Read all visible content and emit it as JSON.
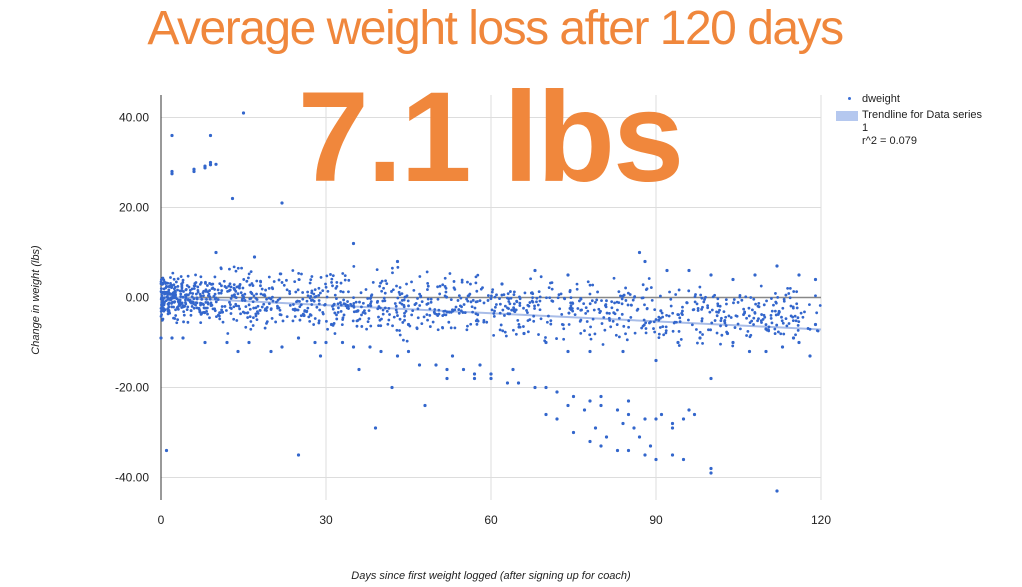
{
  "headline": {
    "title": "Average weight loss after 120 days",
    "highlight": "7.1 lbs"
  },
  "colors": {
    "accent": "#f0873c",
    "points": "#3366cc",
    "trendline": "#a9bde8",
    "grid": "#dddddd",
    "zero_line": "#888888"
  },
  "chart_data": {
    "type": "scatter",
    "title": "Average weight loss after 120 days",
    "xlabel": "Days since first weight logged (after signing up for coach)",
    "ylabel": "Change in weight (lbs)",
    "xlim": [
      0,
      120
    ],
    "ylim": [
      -45,
      45
    ],
    "x_ticks": [
      0,
      30,
      60,
      90,
      120
    ],
    "y_ticks": [
      40,
      20,
      0,
      -20,
      -40
    ],
    "x_tick_labels": [
      "0",
      "30",
      "60",
      "90",
      "120"
    ],
    "y_tick_labels": [
      "40.00",
      "20.00",
      "0.00",
      "-20.00",
      "-40.00"
    ],
    "grid": true,
    "legend_position": "right",
    "series": [
      {
        "name": "dweight",
        "points": [
          [
            2,
            36
          ],
          [
            2,
            28
          ],
          [
            2,
            27.5
          ],
          [
            6,
            28.5
          ],
          [
            6,
            28
          ],
          [
            8,
            28.8
          ],
          [
            8,
            29.2
          ],
          [
            9,
            29.5
          ],
          [
            9,
            30
          ],
          [
            9,
            36
          ],
          [
            10,
            29.6
          ],
          [
            15,
            41
          ],
          [
            13,
            22
          ],
          [
            22,
            21
          ],
          [
            1,
            -34
          ],
          [
            25,
            -35
          ],
          [
            39,
            -29
          ],
          [
            42,
            -20
          ],
          [
            35,
            12
          ],
          [
            17,
            9
          ],
          [
            10,
            10
          ],
          [
            87,
            10
          ],
          [
            43,
            8
          ],
          [
            68,
            6
          ],
          [
            0,
            -9
          ],
          [
            2,
            -9
          ],
          [
            4,
            -9
          ],
          [
            8,
            -10
          ],
          [
            12,
            -10
          ],
          [
            14,
            -12
          ],
          [
            16,
            -10
          ],
          [
            20,
            -12
          ],
          [
            22,
            -11
          ],
          [
            25,
            -9
          ],
          [
            28,
            -10
          ],
          [
            30,
            -10
          ],
          [
            33,
            -10
          ],
          [
            35,
            -11
          ],
          [
            38,
            -11
          ],
          [
            40,
            -12
          ],
          [
            43,
            -13
          ],
          [
            45,
            -12
          ],
          [
            47,
            -15
          ],
          [
            50,
            -15
          ],
          [
            52,
            -16
          ],
          [
            55,
            -16
          ],
          [
            57,
            -17
          ],
          [
            60,
            -18
          ],
          [
            63,
            -19
          ],
          [
            65,
            -19
          ],
          [
            68,
            -20
          ],
          [
            70,
            -20
          ],
          [
            72,
            -21
          ],
          [
            75,
            -22
          ],
          [
            78,
            -23
          ],
          [
            80,
            -24
          ],
          [
            83,
            -25
          ],
          [
            85,
            -26
          ],
          [
            88,
            -27
          ],
          [
            90,
            -27
          ],
          [
            93,
            -28
          ],
          [
            95,
            -27
          ],
          [
            97,
            -26
          ],
          [
            70,
            -26
          ],
          [
            72,
            -27
          ],
          [
            75,
            -30
          ],
          [
            78,
            -32
          ],
          [
            80,
            -33
          ],
          [
            83,
            -34
          ],
          [
            85,
            -34
          ],
          [
            88,
            -35
          ],
          [
            90,
            -36
          ],
          [
            93,
            -35
          ],
          [
            95,
            -36
          ],
          [
            100,
            -38
          ],
          [
            100,
            -39
          ],
          [
            112,
            -43
          ],
          [
            100,
            -18
          ],
          [
            104,
            -10
          ],
          [
            107,
            -12
          ],
          [
            110,
            -12
          ],
          [
            113,
            -11
          ],
          [
            116,
            -10
          ],
          [
            118,
            -13
          ],
          [
            85,
            -23
          ],
          [
            80,
            -22
          ],
          [
            64,
            -16
          ],
          [
            60,
            -17
          ],
          [
            48,
            -24
          ],
          [
            52,
            -18
          ],
          [
            57,
            -18
          ],
          [
            84,
            -28
          ],
          [
            86,
            -29
          ],
          [
            91,
            -26
          ],
          [
            93,
            -29
          ],
          [
            96,
            -25
          ],
          [
            77,
            -25
          ],
          [
            74,
            -24
          ],
          [
            79,
            -29
          ],
          [
            81,
            -31
          ],
          [
            89,
            -33
          ],
          [
            87,
            -31
          ],
          [
            26,
            -4
          ],
          [
            31,
            -6
          ],
          [
            45,
            -6
          ],
          [
            62,
            3
          ],
          [
            74,
            5
          ],
          [
            88,
            8
          ],
          [
            92,
            6
          ],
          [
            96,
            6
          ],
          [
            100,
            5
          ],
          [
            104,
            4
          ],
          [
            108,
            5
          ],
          [
            112,
            7
          ],
          [
            116,
            5
          ],
          [
            119,
            4
          ],
          [
            66,
            -8
          ],
          [
            70,
            -10
          ],
          [
            74,
            -12
          ],
          [
            78,
            -12
          ],
          [
            84,
            -12
          ],
          [
            90,
            -14
          ],
          [
            94,
            -10
          ],
          [
            98,
            -9
          ],
          [
            103,
            -8
          ],
          [
            110,
            -7
          ],
          [
            115,
            -9
          ],
          [
            119,
            -6
          ],
          [
            36,
            -16
          ],
          [
            29,
            -13
          ],
          [
            53,
            -13
          ],
          [
            58,
            -15
          ]
        ]
      },
      {
        "name": "Trendline for Data series 1",
        "label": "r^2 = 0.079",
        "equation": {
          "slope": -0.06,
          "intercept": 0.1
        }
      }
    ],
    "legend": [
      {
        "label": "dweight",
        "marker": "dot"
      },
      {
        "label": "Trendline for Data series\n1\nr^2 = 0.079",
        "marker": "bar"
      }
    ]
  }
}
